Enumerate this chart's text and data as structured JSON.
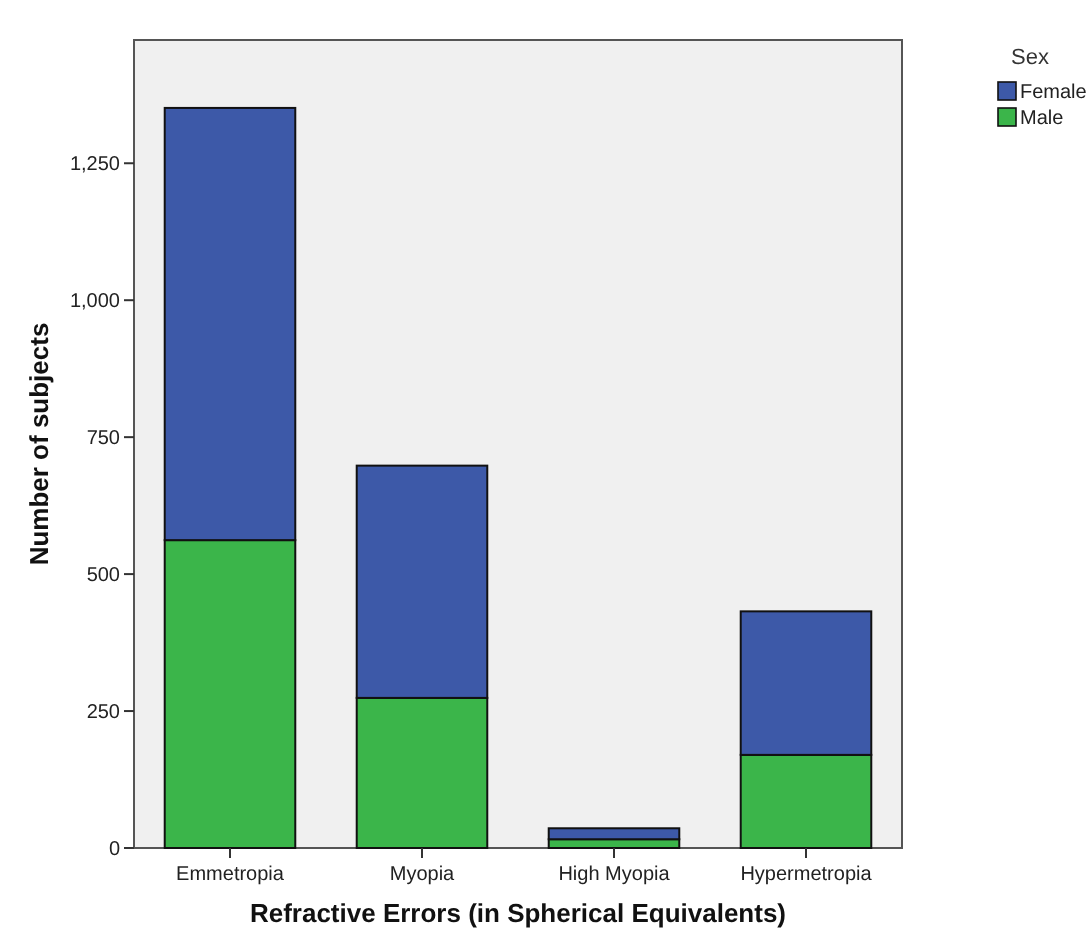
{
  "chart_data": {
    "type": "bar",
    "stacked": true,
    "xlabel": "Refractive Errors (in Spherical Equivalents)",
    "ylabel": "Number of subjects",
    "legend_title": "Sex",
    "legend": "top right",
    "categories": [
      "Emmetropia",
      "Myopia",
      "High Myopia",
      "Hypermetropia"
    ],
    "series": [
      {
        "name": "Male",
        "color": "#3bb54a",
        "values": [
          562,
          274,
          16,
          170
        ]
      },
      {
        "name": "Female",
        "color": "#3d59a8",
        "values": [
          789,
          424,
          20,
          262
        ]
      }
    ],
    "ylim": [
      0,
      1475
    ],
    "yticks": [
      {
        "value": 0,
        "label": "0"
      },
      {
        "value": 250,
        "label": "250"
      },
      {
        "value": 500,
        "label": "500"
      },
      {
        "value": 750,
        "label": "750"
      },
      {
        "value": 1000,
        "label": "1,000"
      },
      {
        "value": 1250,
        "label": "1,250"
      }
    ],
    "grid": false
  }
}
